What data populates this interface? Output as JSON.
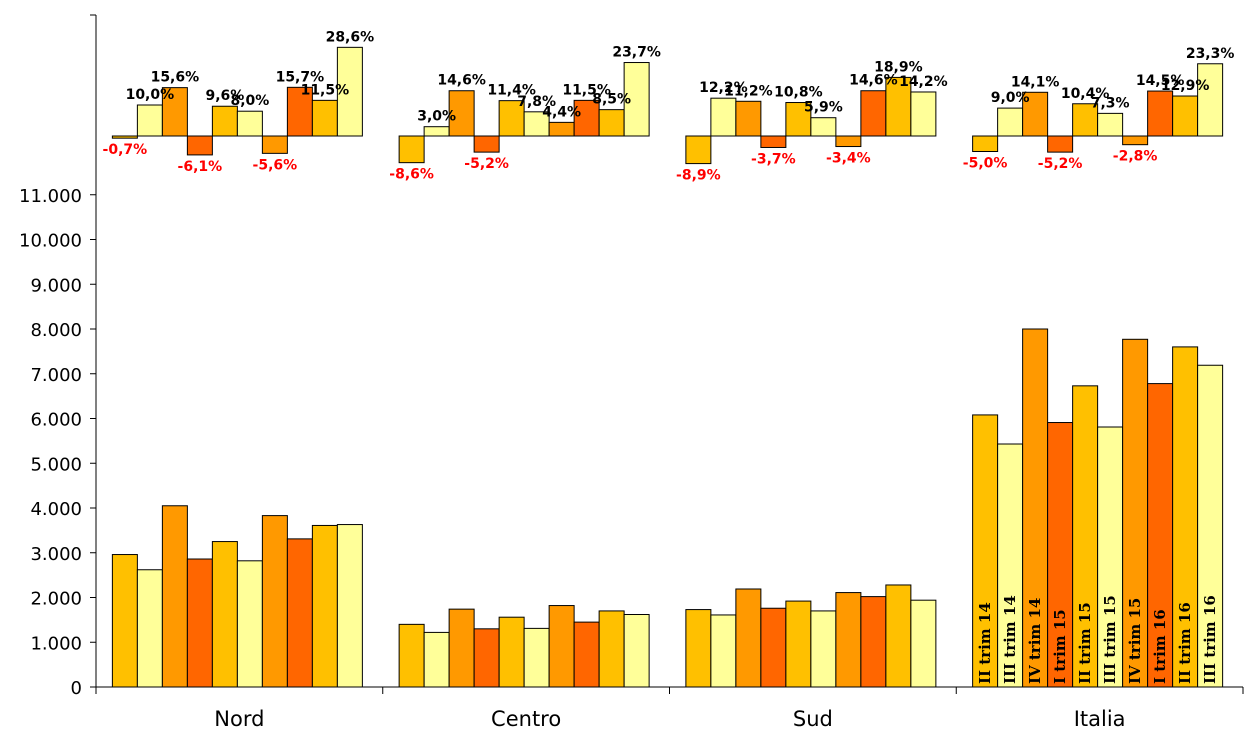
{
  "chart_data": {
    "type": "bar",
    "categories": [
      "Nord",
      "Centro",
      "Sud",
      "Italia"
    ],
    "series": [
      {
        "name": "II trim 14",
        "color": "#FFC000",
        "values": [
          2960,
          1400,
          1730,
          6080
        ]
      },
      {
        "name": "III trim 14",
        "color": "#FFFF99",
        "values": [
          2620,
          1220,
          1610,
          5430
        ]
      },
      {
        "name": "IV trim 14",
        "color": "#FF9900",
        "values": [
          4050,
          1740,
          2190,
          8000
        ]
      },
      {
        "name": "I trim 15",
        "color": "#FF6600",
        "values": [
          2860,
          1300,
          1760,
          5910
        ]
      },
      {
        "name": "II trim 15",
        "color": "#FFC000",
        "values": [
          3250,
          1560,
          1920,
          6730
        ]
      },
      {
        "name": "III trim 15",
        "color": "#FFFF99",
        "values": [
          2820,
          1310,
          1700,
          5810
        ]
      },
      {
        "name": "IV trim 15",
        "color": "#FF9900",
        "values": [
          3830,
          1820,
          2110,
          7770
        ]
      },
      {
        "name": "I trim 16",
        "color": "#FF6600",
        "values": [
          3310,
          1450,
          2020,
          6780
        ]
      },
      {
        "name": "II trim 16",
        "color": "#FFC000",
        "values": [
          3610,
          1700,
          2280,
          7600
        ]
      },
      {
        "name": "III trim 16",
        "color": "#FFFF99",
        "values": [
          3630,
          1620,
          1940,
          7190
        ]
      }
    ],
    "ylim": [
      0,
      12000
    ],
    "yticks": [
      0,
      1000,
      2000,
      3000,
      4000,
      5000,
      6000,
      7000,
      8000,
      9000,
      10000,
      11000
    ],
    "ytick_labels": [
      "0",
      "1.000",
      "2.000",
      "3.000",
      "4.000",
      "5.000",
      "6.000",
      "7.000",
      "8.000",
      "9.000",
      "10.000",
      "11.000"
    ],
    "variation_chart": {
      "type": "bar",
      "unit": "%",
      "values": [
        [
          -0.7,
          10.0,
          15.6,
          -6.1,
          9.6,
          8.0,
          -5.6,
          15.7,
          11.5,
          28.6
        ],
        [
          -8.6,
          3.0,
          14.6,
          -5.2,
          11.4,
          7.8,
          4.4,
          11.5,
          8.5,
          23.7
        ],
        [
          -8.9,
          12.2,
          11.2,
          -3.7,
          10.8,
          5.9,
          -3.4,
          14.6,
          18.9,
          14.2
        ],
        [
          -5.0,
          9.0,
          14.1,
          -5.2,
          10.4,
          7.3,
          -2.8,
          14.5,
          12.9,
          23.3
        ]
      ],
      "labels": [
        [
          "-0,7%",
          "10,0%",
          "15,6%",
          "-6,1%",
          "9,6%",
          "8,0%",
          "-5,6%",
          "15,7%",
          "11,5%",
          "28,6%"
        ],
        [
          "-8,6%",
          "3,0%",
          "14,6%",
          "-5,2%",
          "11,4%",
          "7,8%",
          "4,4%",
          "11,5%",
          "8,5%",
          "23,7%"
        ],
        [
          "-8,9%",
          "12,2%",
          "11,2%",
          "-3,7%",
          "10,8%",
          "5,9%",
          "-3,4%",
          "14,6%",
          "18,9%",
          "14,2%"
        ],
        [
          "-5,0%",
          "9,0%",
          "14,1%",
          "-5,2%",
          "10,4%",
          "7,3%",
          "-2,8%",
          "14,5%",
          "12,9%",
          "23,3%"
        ]
      ],
      "positive_label_color": "#000000",
      "negative_label_color": "#FF0000"
    },
    "bar_labels_in_group": "Italia",
    "legend": "none",
    "grid": false
  }
}
